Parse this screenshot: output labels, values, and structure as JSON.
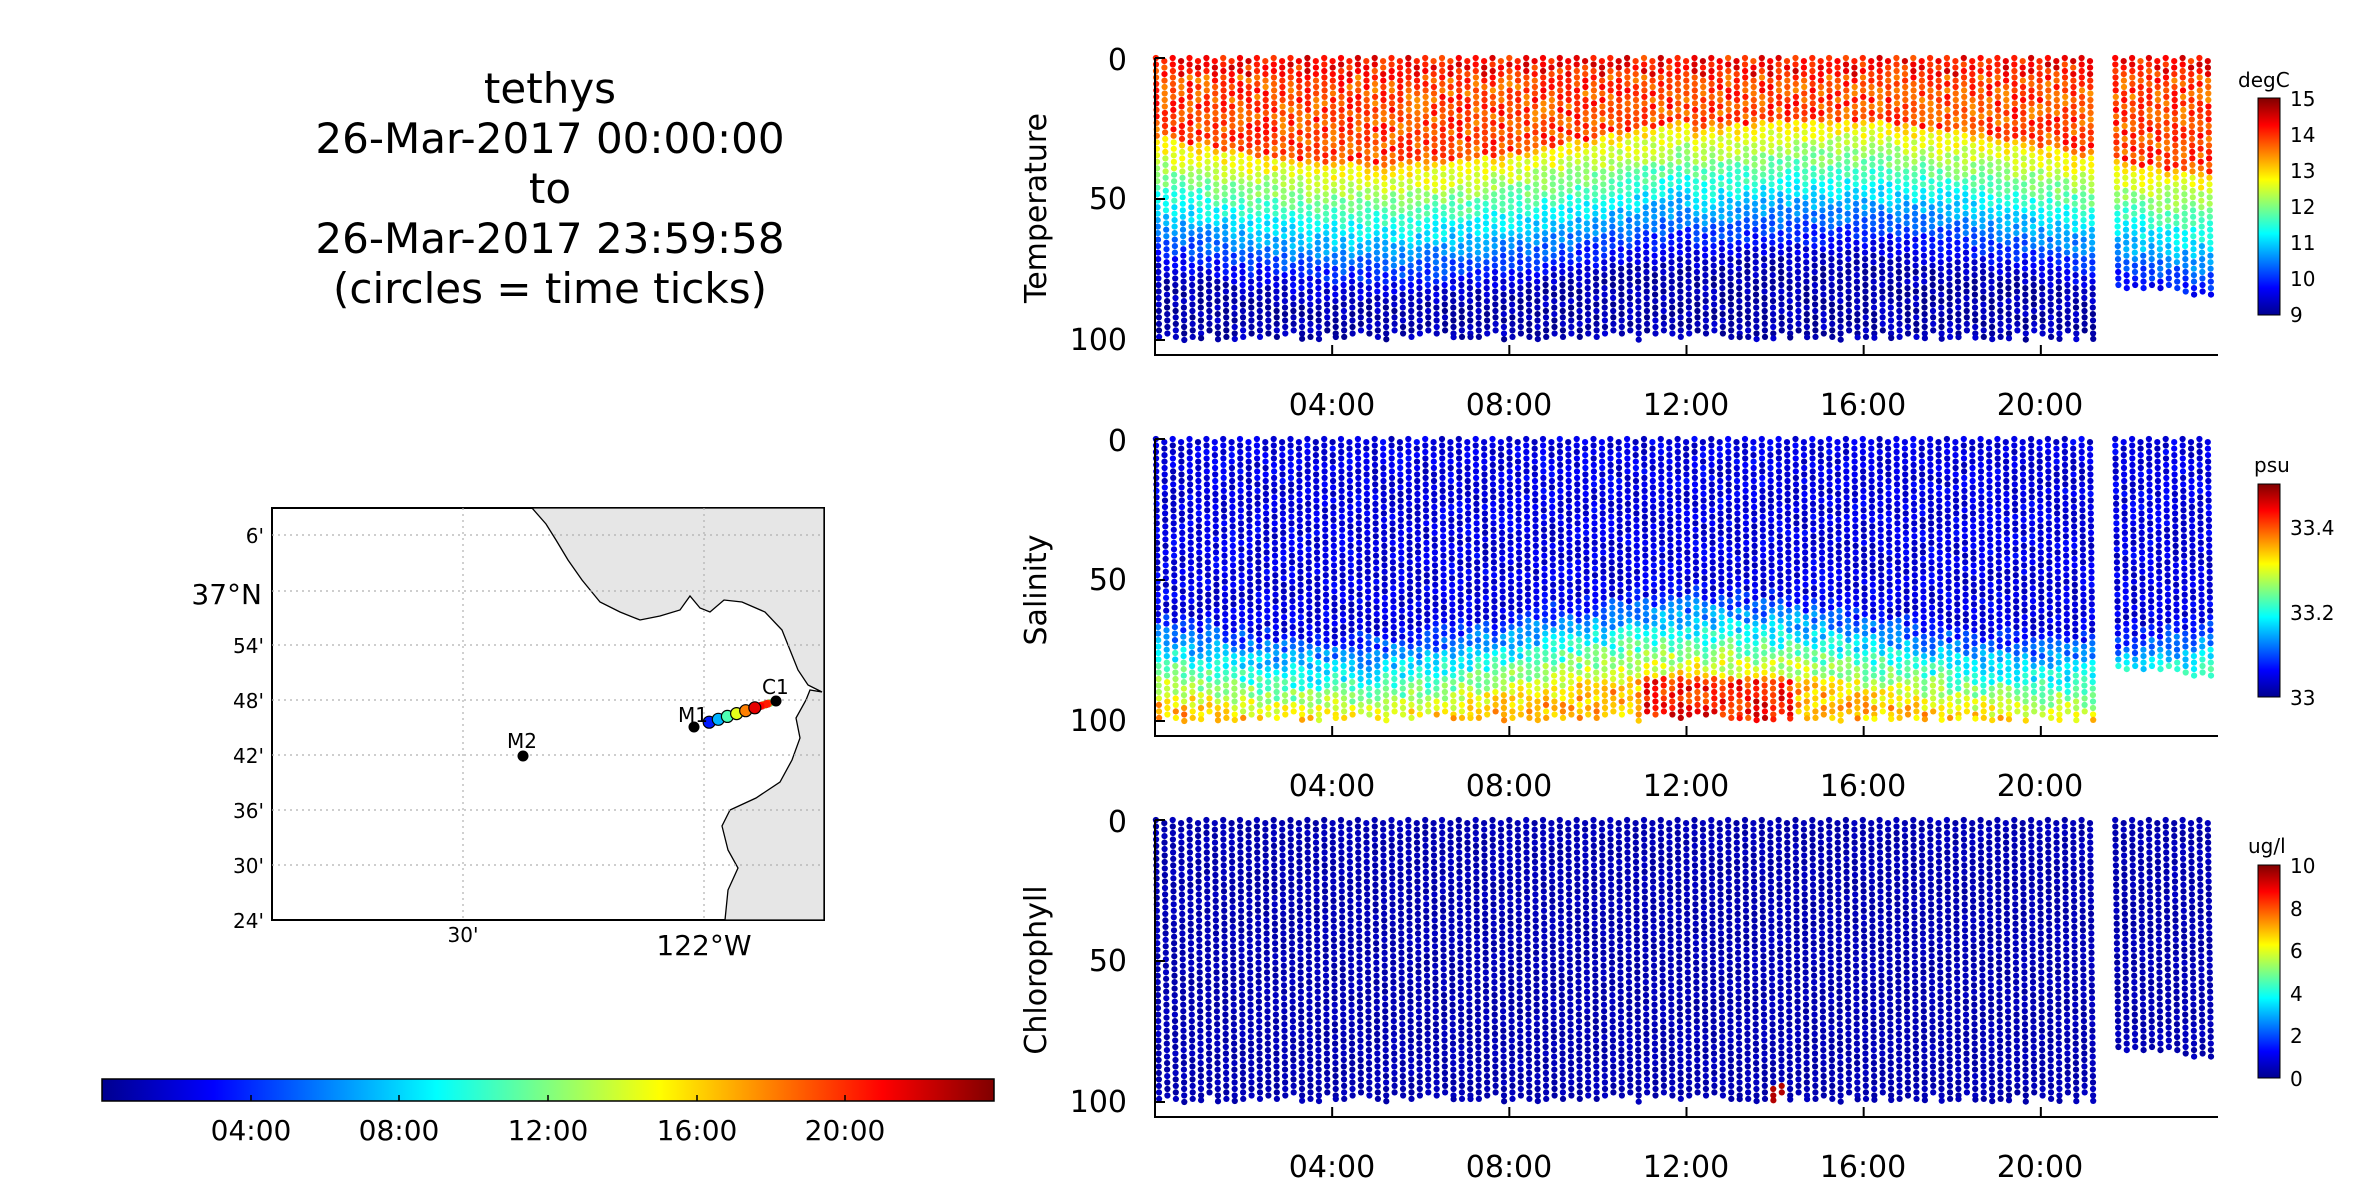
{
  "header": {
    "lines": [
      "tethys",
      "26-Mar-2017 00:00:00",
      "to",
      "26-Mar-2017 23:59:58",
      "(circles = time ticks)"
    ]
  },
  "colors": {
    "jet": [
      "#00008f",
      "#0000ff",
      "#0080ff",
      "#00ffff",
      "#80ff80",
      "#ffff00",
      "#ff8000",
      "#ff0000",
      "#800000"
    ],
    "land": "#e6e6e6",
    "grid": "#b0b0b0"
  },
  "map": {
    "lat_labels": [
      "6'",
      "37°N",
      "54'",
      "48'",
      "42'",
      "36'",
      "30'",
      "24'"
    ],
    "lon_labels": [
      "30'",
      "122°W"
    ],
    "stations": [
      {
        "label": "C1"
      },
      {
        "label": "M1"
      },
      {
        "label": "M2"
      }
    ]
  },
  "time_colorbar": {
    "tick_labels": [
      "04:00",
      "08:00",
      "12:00",
      "16:00",
      "20:00"
    ]
  },
  "chart_data": [
    {
      "type": "scatter",
      "title": "",
      "ylabel": "Temperature",
      "ylim": [
        0,
        100
      ],
      "y_inverted": true,
      "y_ticks": [
        0,
        50,
        100
      ],
      "x_ticks": [
        "04:00",
        "08:00",
        "12:00",
        "16:00",
        "20:00"
      ],
      "xlim_hours": [
        0,
        24
      ],
      "colorbar": {
        "unit": "degC",
        "range": [
          9,
          15
        ],
        "ticks": [
          9,
          10,
          11,
          12,
          13,
          14,
          15
        ]
      },
      "profile": {
        "surface": 13.6,
        "mid": 11.5,
        "deep": 9.2
      },
      "series": [
        {
          "values": [
            {
              "x": "02:00",
              "depth": 10,
              "value": 13.6
            },
            {
              "x": "02:00",
              "depth": 50,
              "value": 11.0
            },
            {
              "x": "02:00",
              "depth": 90,
              "value": 9.3
            },
            {
              "x": "12:00",
              "depth": 10,
              "value": 13.4
            },
            {
              "x": "12:00",
              "depth": 50,
              "value": 10.5
            },
            {
              "x": "12:00",
              "depth": 90,
              "value": 9.2
            },
            {
              "x": "18:00",
              "depth": 10,
              "value": 13.7
            },
            {
              "x": "18:00",
              "depth": 50,
              "value": 11.2
            },
            {
              "x": "18:00",
              "depth": 90,
              "value": 9.3
            }
          ]
        }
      ]
    },
    {
      "type": "scatter",
      "title": "",
      "ylabel": "Salinity",
      "ylim": [
        0,
        100
      ],
      "y_inverted": true,
      "y_ticks": [
        0,
        50,
        100
      ],
      "x_ticks": [
        "04:00",
        "08:00",
        "12:00",
        "16:00",
        "20:00"
      ],
      "xlim_hours": [
        0,
        24
      ],
      "colorbar": {
        "unit": "psu",
        "range": [
          33,
          33.5
        ],
        "ticks": [
          33,
          33.2,
          33.4
        ]
      },
      "profile": {
        "surface": 33.02,
        "mid": 33.05,
        "deep": 33.35
      },
      "series": [
        {
          "values": [
            {
              "x": "02:00",
              "depth": 10,
              "value": 33.02
            },
            {
              "x": "02:00",
              "depth": 50,
              "value": 33.05
            },
            {
              "x": "02:00",
              "depth": 90,
              "value": 33.35
            },
            {
              "x": "12:00",
              "depth": 10,
              "value": 33.02
            },
            {
              "x": "12:00",
              "depth": 50,
              "value": 33.08
            },
            {
              "x": "12:00",
              "depth": 90,
              "value": 33.42
            },
            {
              "x": "18:00",
              "depth": 10,
              "value": 33.02
            },
            {
              "x": "18:00",
              "depth": 50,
              "value": 33.06
            },
            {
              "x": "18:00",
              "depth": 90,
              "value": 33.3
            }
          ]
        }
      ]
    },
    {
      "type": "scatter",
      "title": "",
      "ylabel": "Chlorophyll",
      "ylim": [
        0,
        100
      ],
      "y_inverted": true,
      "y_ticks": [
        0,
        50,
        100
      ],
      "x_ticks": [
        "04:00",
        "08:00",
        "12:00",
        "16:00",
        "20:00"
      ],
      "xlim_hours": [
        0,
        24
      ],
      "colorbar": {
        "unit": "ug/l",
        "range": [
          0,
          10
        ],
        "ticks": [
          0,
          2,
          4,
          6,
          8,
          10
        ]
      },
      "profile": {
        "surface": 0.4,
        "mid": 0.3,
        "deep": 0.2
      },
      "series": [
        {
          "values": [
            {
              "x": "02:00",
              "depth": 10,
              "value": 0.4
            },
            {
              "x": "02:00",
              "depth": 50,
              "value": 0.3
            },
            {
              "x": "12:00",
              "depth": 50,
              "value": 0.3
            },
            {
              "x": "14:00",
              "depth": 100,
              "value": 9.5
            },
            {
              "x": "18:00",
              "depth": 50,
              "value": 0.3
            }
          ]
        }
      ]
    }
  ]
}
